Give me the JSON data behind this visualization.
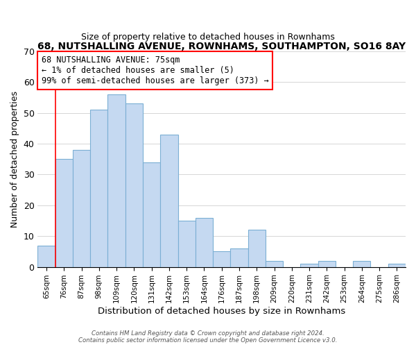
{
  "title": "68, NUTSHALLING AVENUE, ROWNHAMS, SOUTHAMPTON, SO16 8AY",
  "subtitle": "Size of property relative to detached houses in Rownhams",
  "xlabel": "Distribution of detached houses by size in Rownhams",
  "ylabel": "Number of detached properties",
  "bar_labels": [
    "65sqm",
    "76sqm",
    "87sqm",
    "98sqm",
    "109sqm",
    "120sqm",
    "131sqm",
    "142sqm",
    "153sqm",
    "164sqm",
    "176sqm",
    "187sqm",
    "198sqm",
    "209sqm",
    "220sqm",
    "231sqm",
    "242sqm",
    "253sqm",
    "264sqm",
    "275sqm",
    "286sqm"
  ],
  "bar_values": [
    7,
    35,
    38,
    51,
    56,
    53,
    34,
    43,
    15,
    16,
    5,
    6,
    12,
    2,
    0,
    1,
    2,
    0,
    2,
    0,
    1
  ],
  "bar_color": "#c5d9f1",
  "bar_edge_color": "#7bafd4",
  "ylim": [
    0,
    70
  ],
  "yticks": [
    0,
    10,
    20,
    30,
    40,
    50,
    60,
    70
  ],
  "annotation_line1": "68 NUTSHALLING AVENUE: 75sqm",
  "annotation_line2": "← 1% of detached houses are smaller (5)",
  "annotation_line3": "99% of semi-detached houses are larger (373) →",
  "footer_line1": "Contains HM Land Registry data © Crown copyright and database right 2024.",
  "footer_line2": "Contains public sector information licensed under the Open Government Licence v3.0."
}
